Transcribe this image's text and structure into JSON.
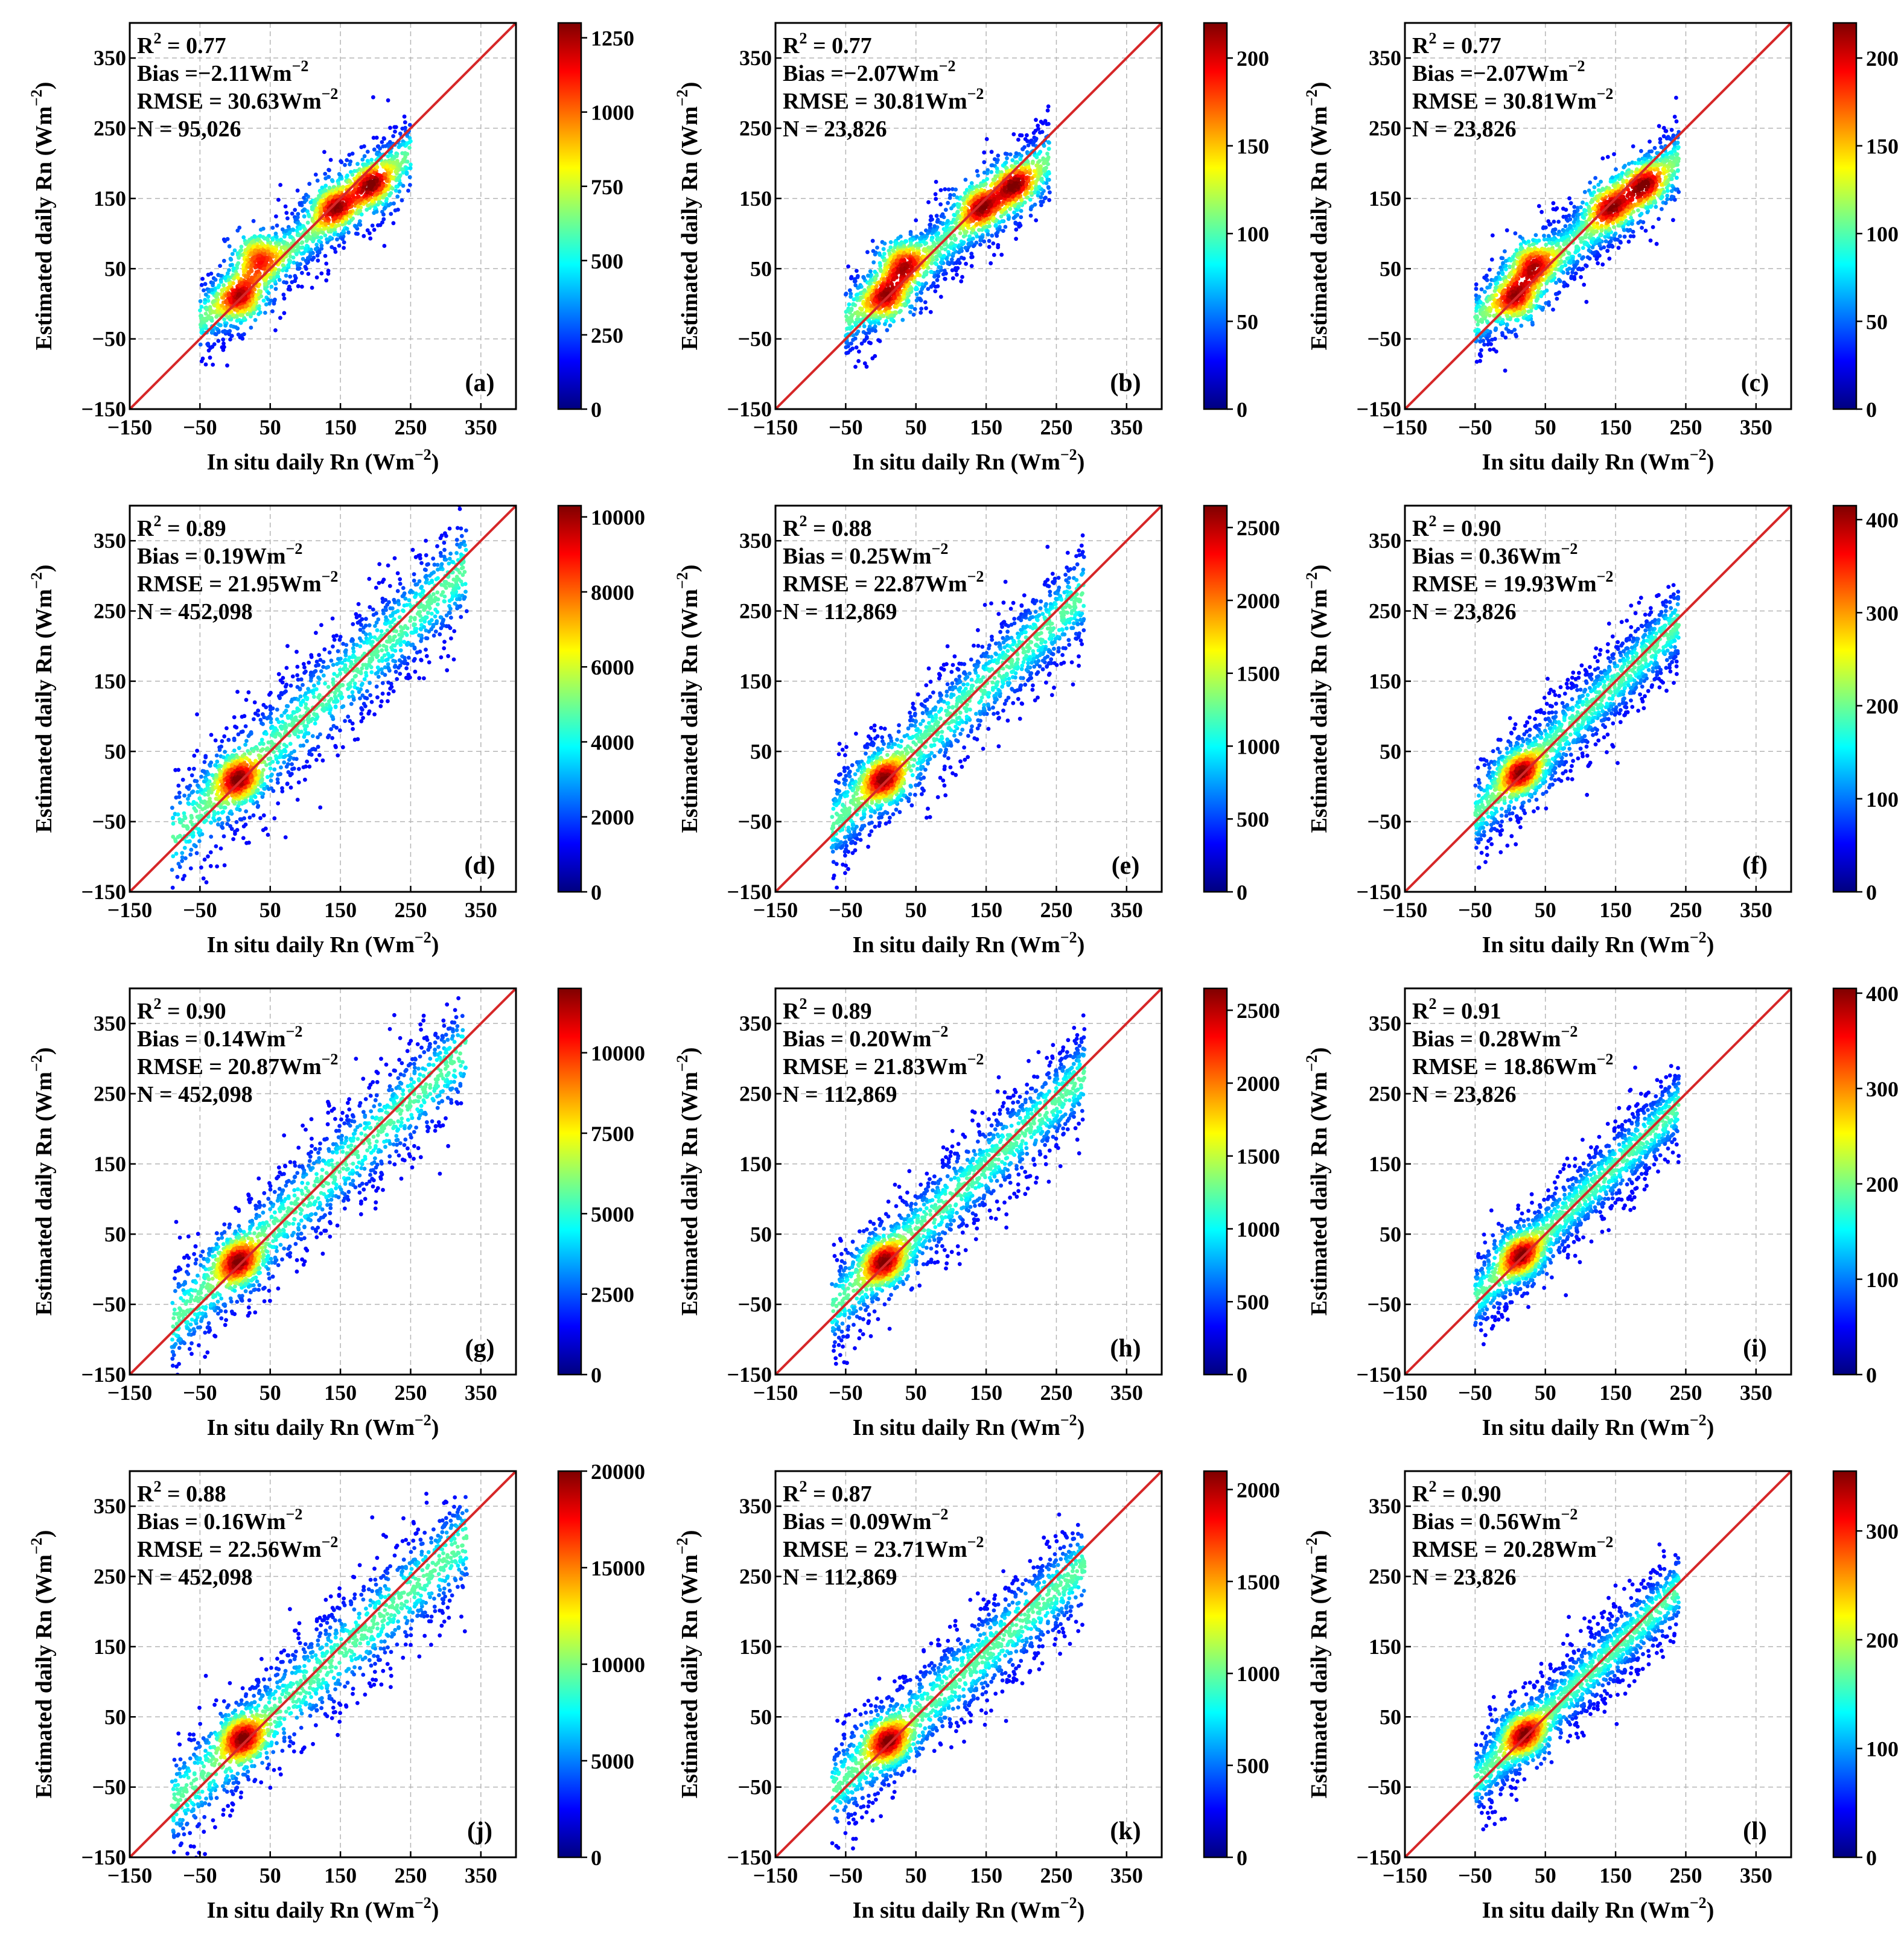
{
  "figure": {
    "common": {
      "xlabel": "In situ daily Rn (Wm",
      "xlabel_sup": "−2",
      "xlabel_close": ")",
      "ylabel": "Estimated daily Rn (Wm",
      "ylabel_sup": "−2",
      "ylabel_close": ")",
      "ticks": [
        -150,
        -50,
        50,
        150,
        250,
        350
      ],
      "tick_labels": [
        "−150",
        "−50",
        "50",
        "150",
        "250",
        "350"
      ],
      "xlim": [
        -150,
        400
      ],
      "ylim": [
        -150,
        400
      ],
      "reference_line": "1:1",
      "reference_line_color": "#d62728",
      "colormap": "jet",
      "colormap_stops": [
        "#00007f",
        "#0000ff",
        "#007fff",
        "#00ffff",
        "#7fff7f",
        "#ffff00",
        "#ff7f00",
        "#ff0000",
        "#7f0000"
      ],
      "grid": true,
      "grid_style": "dashed"
    }
  },
  "chart_data": [
    {
      "type": "scatter",
      "subtype": "density",
      "panel": "(a)",
      "stats": [
        "R",
        "2",
        " = 0.77",
        "Bias =−2.11Wm",
        "−2",
        "RMSE = 30.63Wm",
        "−2",
        "N = 95,026"
      ],
      "n": 95026,
      "r2": 0.77,
      "bias": -2.11,
      "rmse": 30.63,
      "colorbar": {
        "ticks": [
          0,
          250,
          500,
          750,
          1000,
          1250
        ],
        "max": 1300
      },
      "cloud": {
        "x_range": [
          -50,
          250
        ],
        "centroid": [
          100,
          95
        ],
        "hotspots": [
          [
            10,
            5
          ],
          [
            30,
            70
          ],
          [
            140,
            140
          ],
          [
            195,
            170
          ]
        ],
        "spread": 30,
        "slope": 0.8
      }
    },
    {
      "type": "scatter",
      "subtype": "density",
      "panel": "(b)",
      "stats": [
        "R",
        "2",
        " = 0.77",
        "Bias =−2.07Wm",
        "−2",
        "RMSE = 30.81Wm",
        "−2",
        "N = 23,826"
      ],
      "n": 23826,
      "r2": 0.77,
      "bias": -2.07,
      "rmse": 30.81,
      "colorbar": {
        "ticks": [
          0,
          50,
          100,
          150,
          200
        ],
        "max": 220
      },
      "cloud": {
        "x_range": [
          -50,
          240
        ],
        "centroid": [
          100,
          95
        ],
        "hotspots": [
          [
            10,
            5
          ],
          [
            30,
            60
          ],
          [
            140,
            140
          ],
          [
            190,
            170
          ]
        ],
        "spread": 30,
        "slope": 0.8
      }
    },
    {
      "type": "scatter",
      "subtype": "density",
      "panel": "(c)",
      "stats": [
        "R",
        "2",
        " = 0.77",
        "Bias =−2.07Wm",
        "−2",
        "RMSE = 30.81Wm",
        "−2",
        "N = 23,826"
      ],
      "n": 23826,
      "r2": 0.77,
      "bias": -2.07,
      "rmse": 30.81,
      "colorbar": {
        "ticks": [
          0,
          50,
          100,
          150,
          200
        ],
        "max": 220
      },
      "cloud": {
        "x_range": [
          -50,
          240
        ],
        "centroid": [
          100,
          95
        ],
        "hotspots": [
          [
            10,
            5
          ],
          [
            30,
            60
          ],
          [
            140,
            140
          ],
          [
            190,
            170
          ]
        ],
        "spread": 30,
        "slope": 0.8
      }
    },
    {
      "type": "scatter",
      "subtype": "density",
      "panel": "(d)",
      "stats": [
        "R",
        "2",
        " = 0.89",
        "Bias = 0.19Wm",
        "−2",
        "RMSE = 21.95Wm",
        "−2",
        "N = 452,098"
      ],
      "n": 452098,
      "r2": 0.89,
      "bias": 0.19,
      "rmse": 21.95,
      "colorbar": {
        "ticks": [
          0,
          2000,
          4000,
          6000,
          8000,
          10000
        ],
        "max": 10300
      },
      "cloud": {
        "x_range": [
          -90,
          330
        ],
        "centroid": [
          110,
          110
        ],
        "hotspots": [
          [
            5,
            10
          ]
        ],
        "spread": 42,
        "slope": 0.92
      }
    },
    {
      "type": "scatter",
      "subtype": "density",
      "panel": "(e)",
      "stats": [
        "R",
        "2",
        " = 0.88",
        "Bias = 0.25Wm",
        "−2",
        "RMSE = 22.87Wm",
        "−2",
        "N = 112,869"
      ],
      "n": 112869,
      "r2": 0.88,
      "bias": 0.25,
      "rmse": 22.87,
      "colorbar": {
        "ticks": [
          0,
          500,
          1000,
          1500,
          2000,
          2500
        ],
        "max": 2650
      },
      "cloud": {
        "x_range": [
          -70,
          290
        ],
        "centroid": [
          110,
          110
        ],
        "hotspots": [
          [
            5,
            10
          ]
        ],
        "spread": 38,
        "slope": 0.92
      }
    },
    {
      "type": "scatter",
      "subtype": "density",
      "panel": "(f)",
      "stats": [
        "R",
        "2",
        " = 0.90",
        "Bias = 0.36Wm",
        "−2",
        "RMSE = 19.93Wm",
        "−2",
        "N = 23,826"
      ],
      "n": 23826,
      "r2": 0.9,
      "bias": 0.36,
      "rmse": 19.93,
      "colorbar": {
        "ticks": [
          0,
          100,
          200,
          300,
          400
        ],
        "max": 415
      },
      "cloud": {
        "x_range": [
          -50,
          240
        ],
        "centroid": [
          100,
          100
        ],
        "hotspots": [
          [
            15,
            20
          ]
        ],
        "spread": 32,
        "slope": 0.95
      }
    },
    {
      "type": "scatter",
      "subtype": "density",
      "panel": "(g)",
      "stats": [
        "R",
        "2",
        " = 0.90",
        "Bias = 0.14Wm",
        "−2",
        "RMSE = 20.87Wm",
        "−2",
        "N = 452,098"
      ],
      "n": 452098,
      "r2": 0.9,
      "bias": 0.14,
      "rmse": 20.87,
      "colorbar": {
        "ticks": [
          0,
          2500,
          5000,
          7500,
          10000
        ],
        "max": 12000
      },
      "cloud": {
        "x_range": [
          -90,
          330
        ],
        "centroid": [
          110,
          110
        ],
        "hotspots": [
          [
            5,
            10
          ]
        ],
        "spread": 40,
        "slope": 0.93
      }
    },
    {
      "type": "scatter",
      "subtype": "density",
      "panel": "(h)",
      "stats": [
        "R",
        "2",
        " = 0.89",
        "Bias = 0.20Wm",
        "−2",
        "RMSE = 21.83Wm",
        "−2",
        "N = 112,869"
      ],
      "n": 112869,
      "r2": 0.89,
      "bias": 0.2,
      "rmse": 21.83,
      "colorbar": {
        "ticks": [
          0,
          500,
          1000,
          1500,
          2000,
          2500
        ],
        "max": 2650
      },
      "cloud": {
        "x_range": [
          -70,
          290
        ],
        "centroid": [
          110,
          110
        ],
        "hotspots": [
          [
            5,
            10
          ]
        ],
        "spread": 36,
        "slope": 0.93
      }
    },
    {
      "type": "scatter",
      "subtype": "density",
      "panel": "(i)",
      "stats": [
        "R",
        "2",
        " = 0.91",
        "Bias = 0.28Wm",
        "−2",
        "RMSE = 18.86Wm",
        "−2",
        "N = 23,826"
      ],
      "n": 23826,
      "r2": 0.91,
      "bias": 0.28,
      "rmse": 18.86,
      "colorbar": {
        "ticks": [
          0,
          100,
          200,
          300,
          400
        ],
        "max": 405
      },
      "cloud": {
        "x_range": [
          -50,
          240
        ],
        "centroid": [
          100,
          100
        ],
        "hotspots": [
          [
            15,
            20
          ]
        ],
        "spread": 30,
        "slope": 0.95
      }
    },
    {
      "type": "scatter",
      "subtype": "density",
      "panel": "(j)",
      "stats": [
        "R",
        "2",
        " = 0.88",
        "Bias = 0.16Wm",
        "−2",
        "RMSE = 22.56Wm",
        "−2",
        "N = 452,098"
      ],
      "n": 452098,
      "r2": 0.88,
      "bias": 0.16,
      "rmse": 22.56,
      "colorbar": {
        "ticks": [
          0,
          5000,
          10000,
          15000,
          20000
        ],
        "max": 20000
      },
      "cloud": {
        "x_range": [
          -90,
          330
        ],
        "centroid": [
          110,
          105
        ],
        "hotspots": [
          [
            10,
            20
          ]
        ],
        "spread": 42,
        "slope": 0.9
      }
    },
    {
      "type": "scatter",
      "subtype": "density",
      "panel": "(k)",
      "stats": [
        "R",
        "2",
        " = 0.87",
        "Bias = 0.09Wm",
        "−2",
        "RMSE = 23.71Wm",
        "−2",
        "N = 112,869"
      ],
      "n": 112869,
      "r2": 0.87,
      "bias": 0.09,
      "rmse": 23.71,
      "colorbar": {
        "ticks": [
          0,
          500,
          1000,
          1500,
          2000
        ],
        "max": 2100
      },
      "cloud": {
        "x_range": [
          -70,
          290
        ],
        "centroid": [
          110,
          105
        ],
        "hotspots": [
          [
            10,
            15
          ]
        ],
        "spread": 38,
        "slope": 0.9
      }
    },
    {
      "type": "scatter",
      "subtype": "density",
      "panel": "(l)",
      "stats": [
        "R",
        "2",
        " = 0.90",
        "Bias = 0.56Wm",
        "−2",
        "RMSE = 20.28Wm",
        "−2",
        "N = 23,826"
      ],
      "n": 23826,
      "r2": 0.9,
      "bias": 0.56,
      "rmse": 20.28,
      "colorbar": {
        "ticks": [
          0,
          100,
          200,
          300
        ],
        "max": 355
      },
      "cloud": {
        "x_range": [
          -50,
          240
        ],
        "centroid": [
          100,
          100
        ],
        "hotspots": [
          [
            20,
            25
          ]
        ],
        "spread": 30,
        "slope": 0.95
      }
    }
  ]
}
